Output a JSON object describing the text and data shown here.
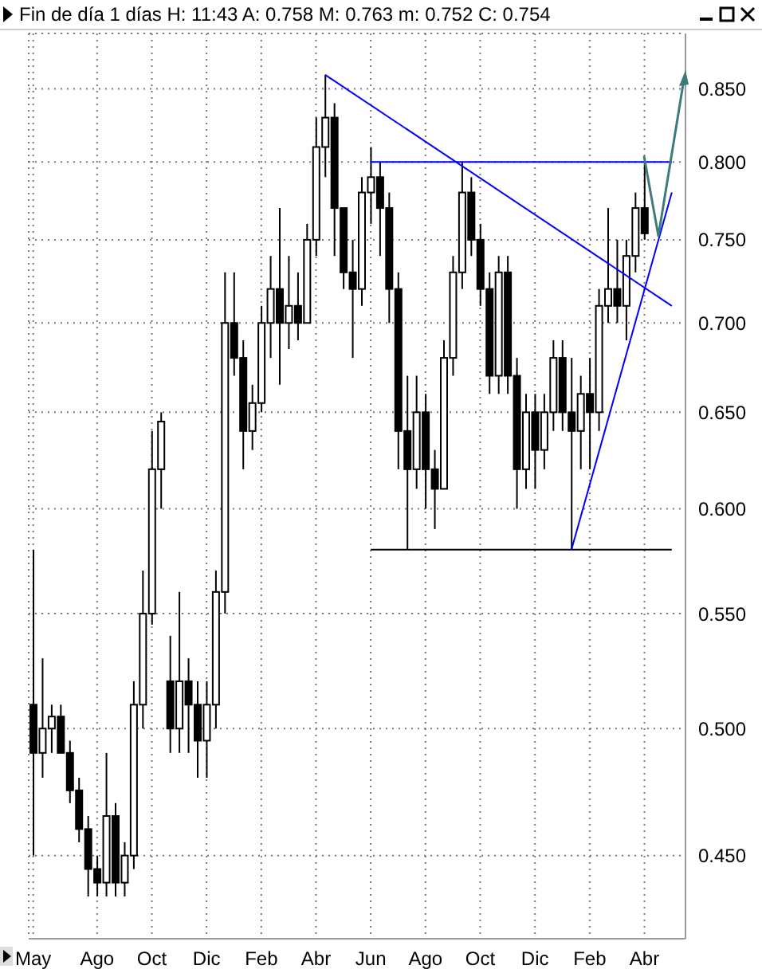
{
  "chart_data": {
    "type": "candlestick",
    "title": "Fin de día 1 días H: 11:43 A: 0.758 M: 0.763 m: 0.752 C: 0.754",
    "color": "#000000",
    "categories": [
      "May",
      null,
      null,
      null,
      null,
      null,
      null,
      "Ago",
      null,
      null,
      null,
      null,
      null,
      "Oct",
      null,
      null,
      null,
      null,
      null,
      "Dic",
      null,
      null,
      null,
      null,
      null,
      "Feb",
      null,
      null,
      null,
      null,
      null,
      "Abr",
      null,
      null,
      null,
      null,
      null,
      "Jun",
      null,
      null,
      null,
      null,
      null,
      "Ago",
      null,
      null,
      null,
      null,
      null,
      "Oct",
      null,
      null,
      null,
      null,
      null,
      "Dic",
      null,
      null,
      null,
      null,
      null,
      "Feb",
      null,
      null,
      null,
      null,
      null,
      "Abr",
      null,
      null,
      null,
      null
    ],
    "ohlc": [
      [
        0.51,
        0.58,
        0.45,
        0.49
      ],
      [
        0.49,
        0.53,
        0.48,
        0.5
      ],
      [
        0.5,
        0.51,
        0.49,
        0.505
      ],
      [
        0.505,
        0.51,
        0.49,
        0.49
      ],
      [
        0.49,
        0.495,
        0.47,
        0.475
      ],
      [
        0.475,
        0.48,
        0.455,
        0.46
      ],
      [
        0.46,
        0.465,
        0.435,
        0.445
      ],
      [
        0.445,
        0.45,
        0.435,
        0.44
      ],
      [
        0.44,
        0.49,
        0.435,
        0.465
      ],
      [
        0.465,
        0.47,
        0.435,
        0.44
      ],
      [
        0.44,
        0.455,
        0.435,
        0.45
      ],
      [
        0.45,
        0.52,
        0.445,
        0.51
      ],
      [
        0.51,
        0.57,
        0.5,
        0.55
      ],
      [
        0.55,
        0.64,
        0.545,
        0.62
      ],
      [
        0.62,
        0.65,
        0.6,
        0.645
      ],
      [
        0.52,
        0.54,
        0.49,
        0.5
      ],
      [
        0.5,
        0.56,
        0.49,
        0.52
      ],
      [
        0.52,
        0.53,
        0.49,
        0.51
      ],
      [
        0.51,
        0.52,
        0.48,
        0.495
      ],
      [
        0.495,
        0.52,
        0.48,
        0.51
      ],
      [
        0.51,
        0.57,
        0.5,
        0.56
      ],
      [
        0.56,
        0.73,
        0.55,
        0.7
      ],
      [
        0.7,
        0.73,
        0.67,
        0.68
      ],
      [
        0.68,
        0.69,
        0.62,
        0.64
      ],
      [
        0.64,
        0.665,
        0.63,
        0.655
      ],
      [
        0.655,
        0.71,
        0.65,
        0.7
      ],
      [
        0.7,
        0.74,
        0.68,
        0.72
      ],
      [
        0.72,
        0.77,
        0.665,
        0.7
      ],
      [
        0.7,
        0.74,
        0.685,
        0.71
      ],
      [
        0.71,
        0.73,
        0.69,
        0.7
      ],
      [
        0.7,
        0.76,
        0.7,
        0.75
      ],
      [
        0.75,
        0.83,
        0.74,
        0.81
      ],
      [
        0.81,
        0.86,
        0.79,
        0.83
      ],
      [
        0.83,
        0.84,
        0.74,
        0.77
      ],
      [
        0.77,
        0.77,
        0.72,
        0.73
      ],
      [
        0.73,
        0.75,
        0.68,
        0.72
      ],
      [
        0.72,
        0.79,
        0.71,
        0.78
      ],
      [
        0.78,
        0.81,
        0.76,
        0.79
      ],
      [
        0.79,
        0.8,
        0.74,
        0.77
      ],
      [
        0.77,
        0.78,
        0.7,
        0.72
      ],
      [
        0.72,
        0.73,
        0.62,
        0.64
      ],
      [
        0.64,
        0.67,
        0.58,
        0.62
      ],
      [
        0.62,
        0.67,
        0.61,
        0.65
      ],
      [
        0.65,
        0.66,
        0.6,
        0.62
      ],
      [
        0.62,
        0.63,
        0.59,
        0.61
      ],
      [
        0.61,
        0.69,
        0.61,
        0.68
      ],
      [
        0.68,
        0.74,
        0.67,
        0.73
      ],
      [
        0.73,
        0.8,
        0.72,
        0.78
      ],
      [
        0.78,
        0.79,
        0.74,
        0.75
      ],
      [
        0.75,
        0.76,
        0.71,
        0.72
      ],
      [
        0.72,
        0.73,
        0.66,
        0.67
      ],
      [
        0.67,
        0.74,
        0.66,
        0.73
      ],
      [
        0.73,
        0.74,
        0.66,
        0.67
      ],
      [
        0.67,
        0.68,
        0.6,
        0.62
      ],
      [
        0.62,
        0.66,
        0.61,
        0.65
      ],
      [
        0.65,
        0.66,
        0.61,
        0.63
      ],
      [
        0.63,
        0.66,
        0.62,
        0.65
      ],
      [
        0.65,
        0.69,
        0.64,
        0.68
      ],
      [
        0.68,
        0.69,
        0.64,
        0.65
      ],
      [
        0.65,
        0.68,
        0.58,
        0.64
      ],
      [
        0.64,
        0.67,
        0.62,
        0.66
      ],
      [
        0.66,
        0.68,
        0.62,
        0.65
      ],
      [
        0.65,
        0.72,
        0.64,
        0.71
      ],
      [
        0.71,
        0.77,
        0.7,
        0.72
      ],
      [
        0.72,
        0.75,
        0.7,
        0.71
      ],
      [
        0.71,
        0.75,
        0.69,
        0.74
      ],
      [
        0.74,
        0.78,
        0.73,
        0.77
      ],
      [
        0.77,
        0.8,
        0.75,
        0.754
      ],
      null,
      null,
      null,
      null
    ],
    "series": [
      {
        "type": "line",
        "color": "#0000ff",
        "values": [
          null,
          null,
          null,
          null,
          null,
          null,
          null,
          null,
          null,
          null,
          null,
          null,
          null,
          null,
          null,
          null,
          null,
          null,
          null,
          null,
          null,
          null,
          null,
          null,
          null,
          null,
          null,
          null,
          null,
          null,
          null,
          null,
          0.86,
          null,
          null,
          null,
          null,
          null,
          null,
          null,
          null,
          null,
          null,
          null,
          null,
          null,
          null,
          null,
          null,
          null,
          null,
          null,
          null,
          null,
          null,
          null,
          null,
          null,
          null,
          null,
          null,
          null,
          null,
          null,
          null,
          null,
          null,
          null,
          null,
          null,
          0.71,
          null
        ]
      },
      {
        "type": "line",
        "color": "#0000ff",
        "values": [
          null,
          null,
          null,
          null,
          null,
          null,
          null,
          null,
          null,
          null,
          null,
          null,
          null,
          null,
          null,
          null,
          null,
          null,
          null,
          null,
          null,
          null,
          null,
          null,
          null,
          null,
          null,
          null,
          null,
          null,
          null,
          null,
          null,
          null,
          null,
          null,
          null,
          0.8,
          null,
          null,
          null,
          null,
          null,
          null,
          null,
          null,
          null,
          null,
          null,
          null,
          null,
          null,
          null,
          null,
          null,
          null,
          null,
          null,
          null,
          null,
          null,
          null,
          null,
          null,
          null,
          null,
          null,
          null,
          null,
          null,
          0.8,
          null
        ]
      },
      {
        "type": "line",
        "color": "#000000",
        "values": [
          null,
          null,
          null,
          null,
          null,
          null,
          null,
          null,
          null,
          null,
          null,
          null,
          null,
          null,
          null,
          null,
          null,
          null,
          null,
          null,
          null,
          null,
          null,
          null,
          null,
          null,
          null,
          null,
          null,
          null,
          null,
          null,
          null,
          null,
          null,
          null,
          null,
          0.58,
          null,
          null,
          null,
          null,
          null,
          null,
          null,
          null,
          null,
          null,
          null,
          null,
          null,
          null,
          null,
          null,
          null,
          null,
          null,
          null,
          null,
          null,
          null,
          null,
          null,
          null,
          null,
          null,
          null,
          null,
          null,
          null,
          0.58,
          null
        ]
      },
      {
        "type": "line",
        "color": "#0000ff",
        "values": [
          null,
          null,
          null,
          null,
          null,
          null,
          null,
          null,
          null,
          null,
          null,
          null,
          null,
          null,
          null,
          null,
          null,
          null,
          null,
          null,
          null,
          null,
          null,
          null,
          null,
          null,
          null,
          null,
          null,
          null,
          null,
          null,
          null,
          null,
          null,
          null,
          null,
          null,
          null,
          null,
          null,
          null,
          null,
          null,
          null,
          null,
          null,
          null,
          null,
          null,
          null,
          null,
          null,
          null,
          null,
          null,
          null,
          null,
          null,
          0.58,
          null,
          null,
          null,
          null,
          null,
          null,
          null,
          null,
          null,
          null,
          0.78,
          null
        ]
      }
    ],
    "ylim": [
      0.42,
      0.89
    ],
    "log": "y",
    "grid": true,
    "yticks": [
      {
        "value": 0.45,
        "label": "0.450"
      },
      {
        "value": 0.5,
        "label": "0.500"
      },
      {
        "value": 0.55,
        "label": "0.550"
      },
      {
        "value": 0.6,
        "label": "0.600"
      },
      {
        "value": 0.65,
        "label": "0.650"
      },
      {
        "value": 0.7,
        "label": "0.700"
      },
      {
        "value": 0.75,
        "label": "0.750"
      },
      {
        "value": 0.8,
        "label": "0.800"
      },
      {
        "value": 0.85,
        "label": "0.850"
      }
    ]
  }
}
